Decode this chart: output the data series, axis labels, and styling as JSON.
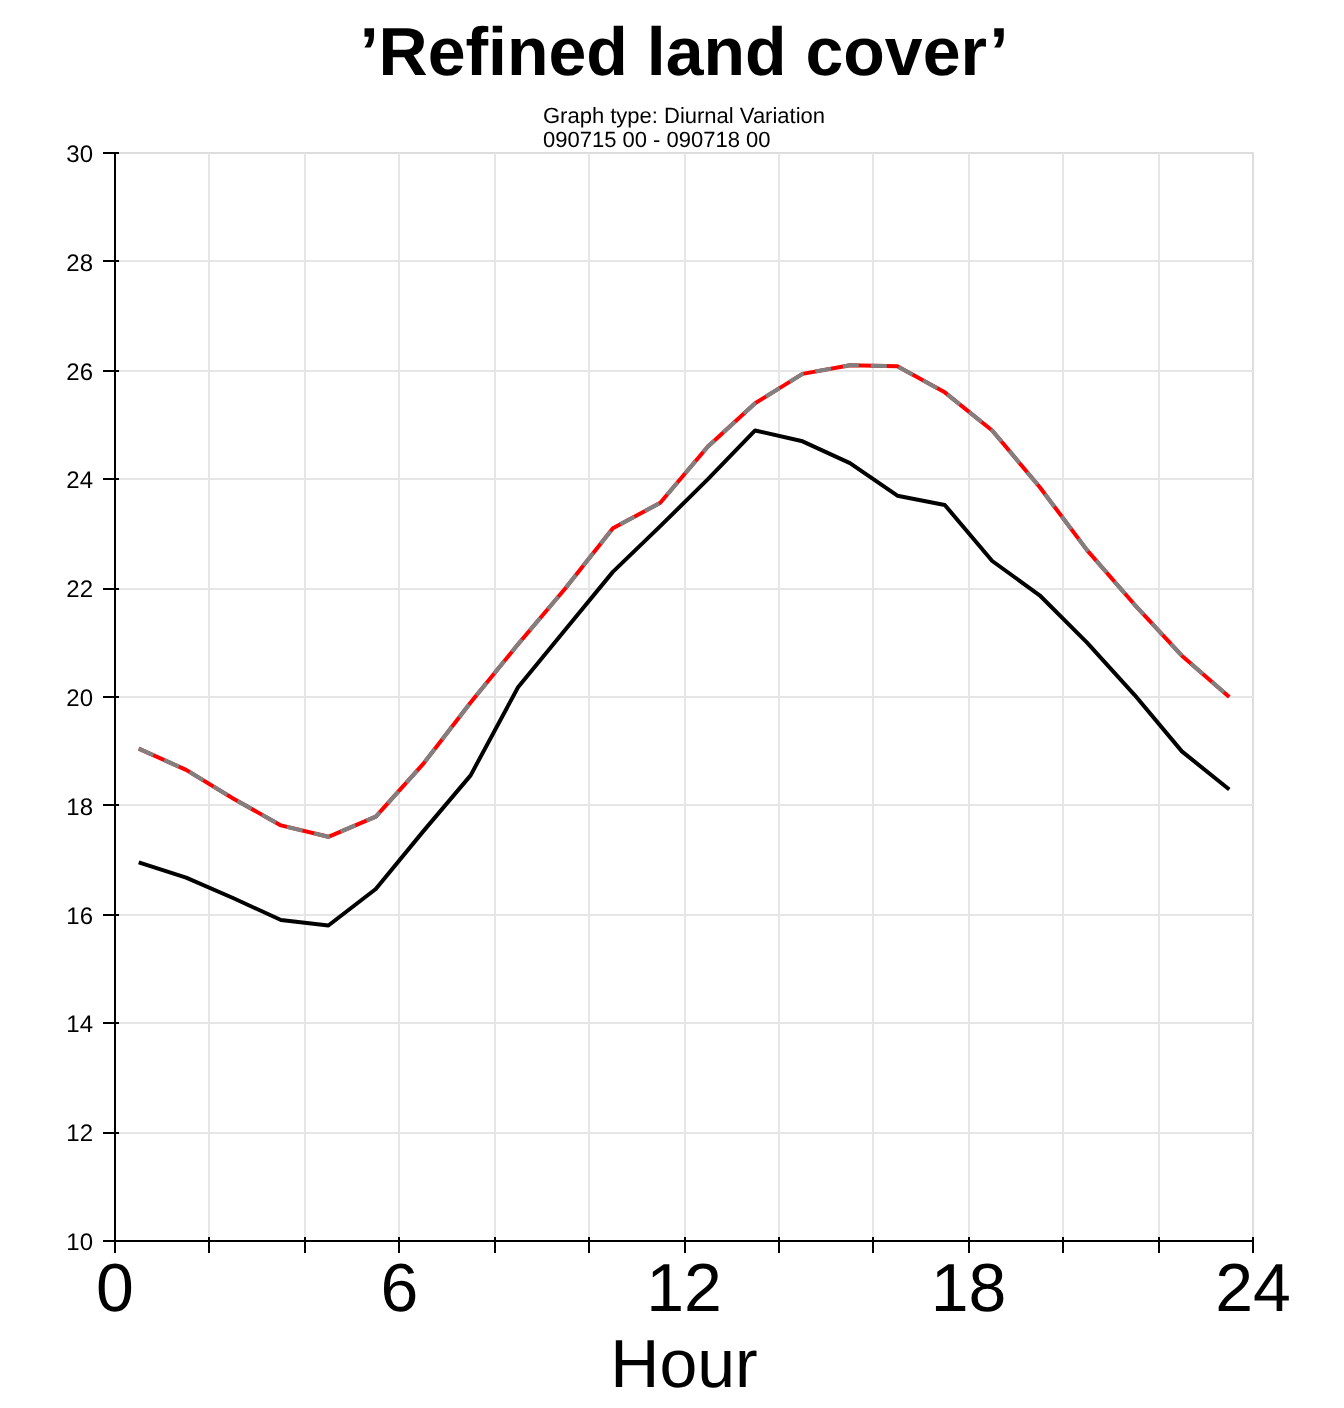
{
  "chart_data": {
    "type": "line",
    "title": "’Refined land cover’",
    "subtitle": "Graph type: Diurnal Variation\n090715 00 - 090718 00",
    "xlabel": "Hour",
    "x": [
      0.5,
      1.5,
      2.5,
      3.5,
      4.5,
      5.5,
      6.5,
      7.5,
      8.5,
      9.5,
      10.5,
      11.5,
      12.5,
      13.5,
      14.5,
      15.5,
      16.5,
      17.5,
      18.5,
      19.5,
      20.5,
      21.5,
      22.5,
      23.5
    ],
    "series": [
      {
        "color": "#ff0000",
        "line_style": "solid",
        "values": [
          19.05,
          18.66,
          18.13,
          17.64,
          17.43,
          17.8,
          18.77,
          19.9,
          20.97,
          22.0,
          23.1,
          23.57,
          24.6,
          25.4,
          25.94,
          26.1,
          26.08,
          25.6,
          24.9,
          23.86,
          22.7,
          21.7,
          20.76,
          20.0
        ]
      },
      {
        "color": "#808080",
        "line_style": "dashed",
        "values": [
          19.05,
          18.66,
          18.13,
          17.64,
          17.43,
          17.8,
          18.77,
          19.9,
          20.97,
          22.0,
          23.1,
          23.57,
          24.6,
          25.4,
          25.94,
          26.1,
          26.08,
          25.6,
          24.9,
          23.86,
          22.7,
          21.7,
          20.76,
          20.0
        ]
      },
      {
        "color": "#000000",
        "line_style": "solid",
        "values": [
          16.96,
          16.68,
          16.3,
          15.9,
          15.8,
          16.47,
          17.53,
          18.56,
          20.18,
          21.24,
          22.3,
          23.14,
          24.0,
          24.9,
          24.7,
          24.3,
          23.7,
          23.53,
          22.5,
          21.87,
          21.0,
          20.04,
          19.0,
          18.3
        ]
      }
    ],
    "xlim": [
      0,
      24
    ],
    "xticks": [
      0,
      {
        "value": 2,
        "label": null
      },
      {
        "value": 4,
        "label": null
      },
      6,
      {
        "value": 8,
        "label": null
      },
      {
        "value": 10,
        "label": null
      },
      12,
      {
        "value": 14,
        "label": null
      },
      {
        "value": 16,
        "label": null
      },
      18,
      {
        "value": 20,
        "label": null
      },
      {
        "value": 22,
        "label": null
      },
      24
    ],
    "ylim": [
      10,
      30
    ],
    "yticks": [
      10,
      12,
      14,
      16,
      18,
      20,
      22,
      24,
      26,
      28,
      30
    ],
    "grid": true,
    "marker": "none"
  }
}
